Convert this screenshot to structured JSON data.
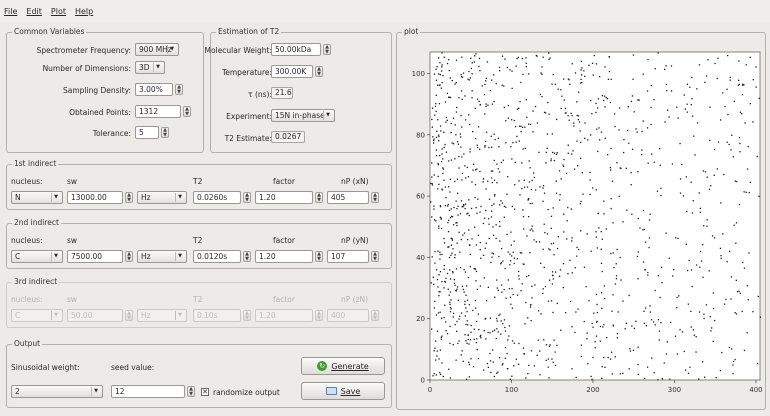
{
  "menu": [
    "File",
    "Edit",
    "Plot",
    "Help"
  ],
  "common": {
    "legend": "Common Variables",
    "spec_freq_label": "Spectrometer Frequency:",
    "spec_freq_value": "900 MHz",
    "dims_label": "Number of Dimensions:",
    "dims_value": "3D",
    "density_label": "Sampling Density:",
    "density_value": "3.00%",
    "points_label": "Obtained Points:",
    "points_value": "1312",
    "tolerance_label": "Tolerance:",
    "tolerance_value": "5"
  },
  "t2est": {
    "legend": "Estimation of T2",
    "mw_label": "Molecular Weight:",
    "mw_value": "50.00kDa",
    "temp_label": "Temperature:",
    "temp_value": "300.00K",
    "tau_label": "τ (ns):",
    "tau_value": "21.6",
    "exp_label": "Experiment:",
    "exp_value": "15N in-phase",
    "est_label": "T2 Estimate:",
    "est_value": "0.0267"
  },
  "headers": {
    "nucleus": "nucleus:",
    "sw": "sw",
    "t2": "T2",
    "factor": "factor",
    "np1": "nP (xN)",
    "np2": "nP (yN)",
    "np3": "nP (zN)"
  },
  "indirect1": {
    "legend": "1st indirect",
    "nucleus": "N",
    "sw": "13000.00",
    "unit": "Hz",
    "t2": "0.0260s",
    "factor": "1.20",
    "np": "405"
  },
  "indirect2": {
    "legend": "2nd indirect",
    "nucleus": "C",
    "sw": "7500.00",
    "unit": "Hz",
    "t2": "0.0120s",
    "factor": "1.20",
    "np": "107"
  },
  "indirect3": {
    "legend": "3rd indirect",
    "nucleus": "C",
    "sw": "50.00",
    "unit": "Hz",
    "t2": "0.10s",
    "factor": "1.20",
    "np": "400"
  },
  "output": {
    "legend": "Output",
    "sin_label": "Sinusoidal weight:",
    "seed_label": "seed value:",
    "sin_value": "2",
    "seed_value": "12",
    "randomize_label": "randomize output",
    "generate_label": "Generate",
    "save_label": "Save"
  },
  "plot": {
    "legend": "plot",
    "xticks": [
      "0",
      "100",
      "200",
      "300",
      "400"
    ],
    "yticks": [
      "0",
      "20",
      "40",
      "60",
      "80",
      "100"
    ]
  },
  "chart_data": {
    "type": "scatter",
    "title": "",
    "xlabel": "",
    "ylabel": "",
    "xlim": [
      0,
      405
    ],
    "ylim": [
      0,
      107
    ],
    "grid": false,
    "legend": "none",
    "point_count": 1312,
    "distribution": "random sampling schedule, density decreasing with x (sinusoidal weight 2, seed 12)",
    "seed": 12
  },
  "colors": {
    "point": "#1a1a1a",
    "background": "#ecebe8",
    "plot_bg": "#ffffff"
  }
}
